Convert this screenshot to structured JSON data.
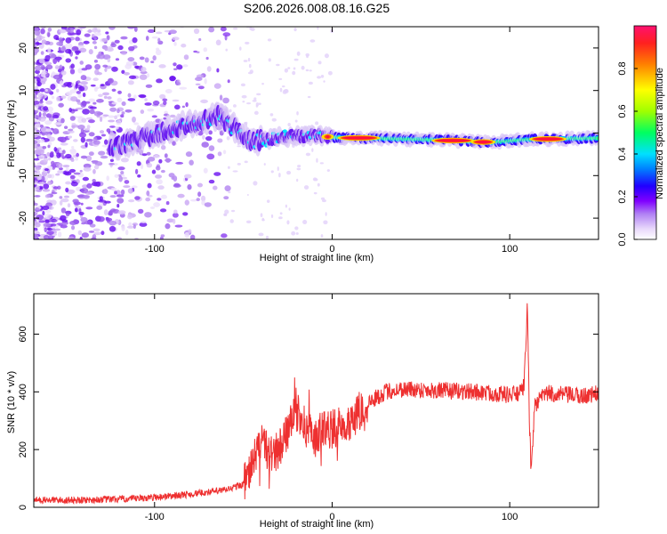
{
  "chart_data": [
    {
      "type": "heatmap",
      "title": "S206.2026.008.08.16.G25",
      "xlabel": "Height of straight line (km)",
      "ylabel": "Frequency (Hz)",
      "xlim": [
        -168,
        150
      ],
      "ylim": [
        -25,
        25
      ],
      "xticks": [
        -100,
        0,
        100
      ],
      "yticks": [
        -20,
        -10,
        0,
        10,
        20
      ],
      "colorbar": {
        "label": "Normalized spectral amplitude",
        "range": [
          0,
          1
        ],
        "ticks": [
          "0.0",
          "0.2",
          "0.4",
          "0.6",
          "0.8"
        ],
        "colors": [
          "#ffffff",
          "#c9a6f4",
          "#8000ff",
          "#2000ff",
          "#0080ff",
          "#00e0ff",
          "#00ff60",
          "#ffff00",
          "#ff6000",
          "#ff1060"
        ]
      },
      "ridge": {
        "description_points_x": [
          -120,
          -90,
          -64,
          -45,
          -30,
          -10,
          0,
          20,
          60,
          90,
          110,
          150
        ],
        "center_freq_hz": [
          -3,
          1,
          4,
          -2,
          -1,
          -0.5,
          -1,
          -1.2,
          -1.6,
          -2.2,
          -1.5,
          -1.2
        ],
        "peak_segments": [
          {
            "x": [
              -3,
              -2
            ],
            "amplitude": 0.9
          },
          {
            "x": [
              5,
              25
            ],
            "amplitude": 0.95
          },
          {
            "x": [
              58,
              78
            ],
            "amplitude": 1.0
          },
          {
            "x": [
              80,
              90
            ],
            "amplitude": 0.95
          },
          {
            "x": [
              113,
              130
            ],
            "amplitude": 1.0
          }
        ]
      }
    },
    {
      "type": "line",
      "xlabel": "Height of straight line (km)",
      "ylabel": "SNR (10 * v/v)",
      "xlim": [
        -168,
        150
      ],
      "ylim": [
        0,
        740
      ],
      "xticks": [
        -100,
        0,
        100
      ],
      "yticks": [
        0,
        200,
        400,
        600
      ],
      "series": [
        {
          "name": "SNR",
          "color": "#ee3030",
          "x": [
            -168,
            -140,
            -110,
            -80,
            -60,
            -50,
            -45,
            -40,
            -35,
            -30,
            -20,
            -15,
            -10,
            -5,
            0,
            10,
            20,
            30,
            40,
            60,
            80,
            100,
            106,
            108,
            109,
            110,
            111,
            112,
            114,
            120,
            130,
            140,
            150
          ],
          "y": [
            25,
            25,
            30,
            45,
            60,
            80,
            140,
            240,
            180,
            200,
            330,
            280,
            230,
            280,
            270,
            300,
            360,
            400,
            410,
            405,
            400,
            390,
            395,
            420,
            560,
            700,
            320,
            120,
            350,
            395,
            390,
            385,
            395
          ]
        }
      ]
    }
  ]
}
